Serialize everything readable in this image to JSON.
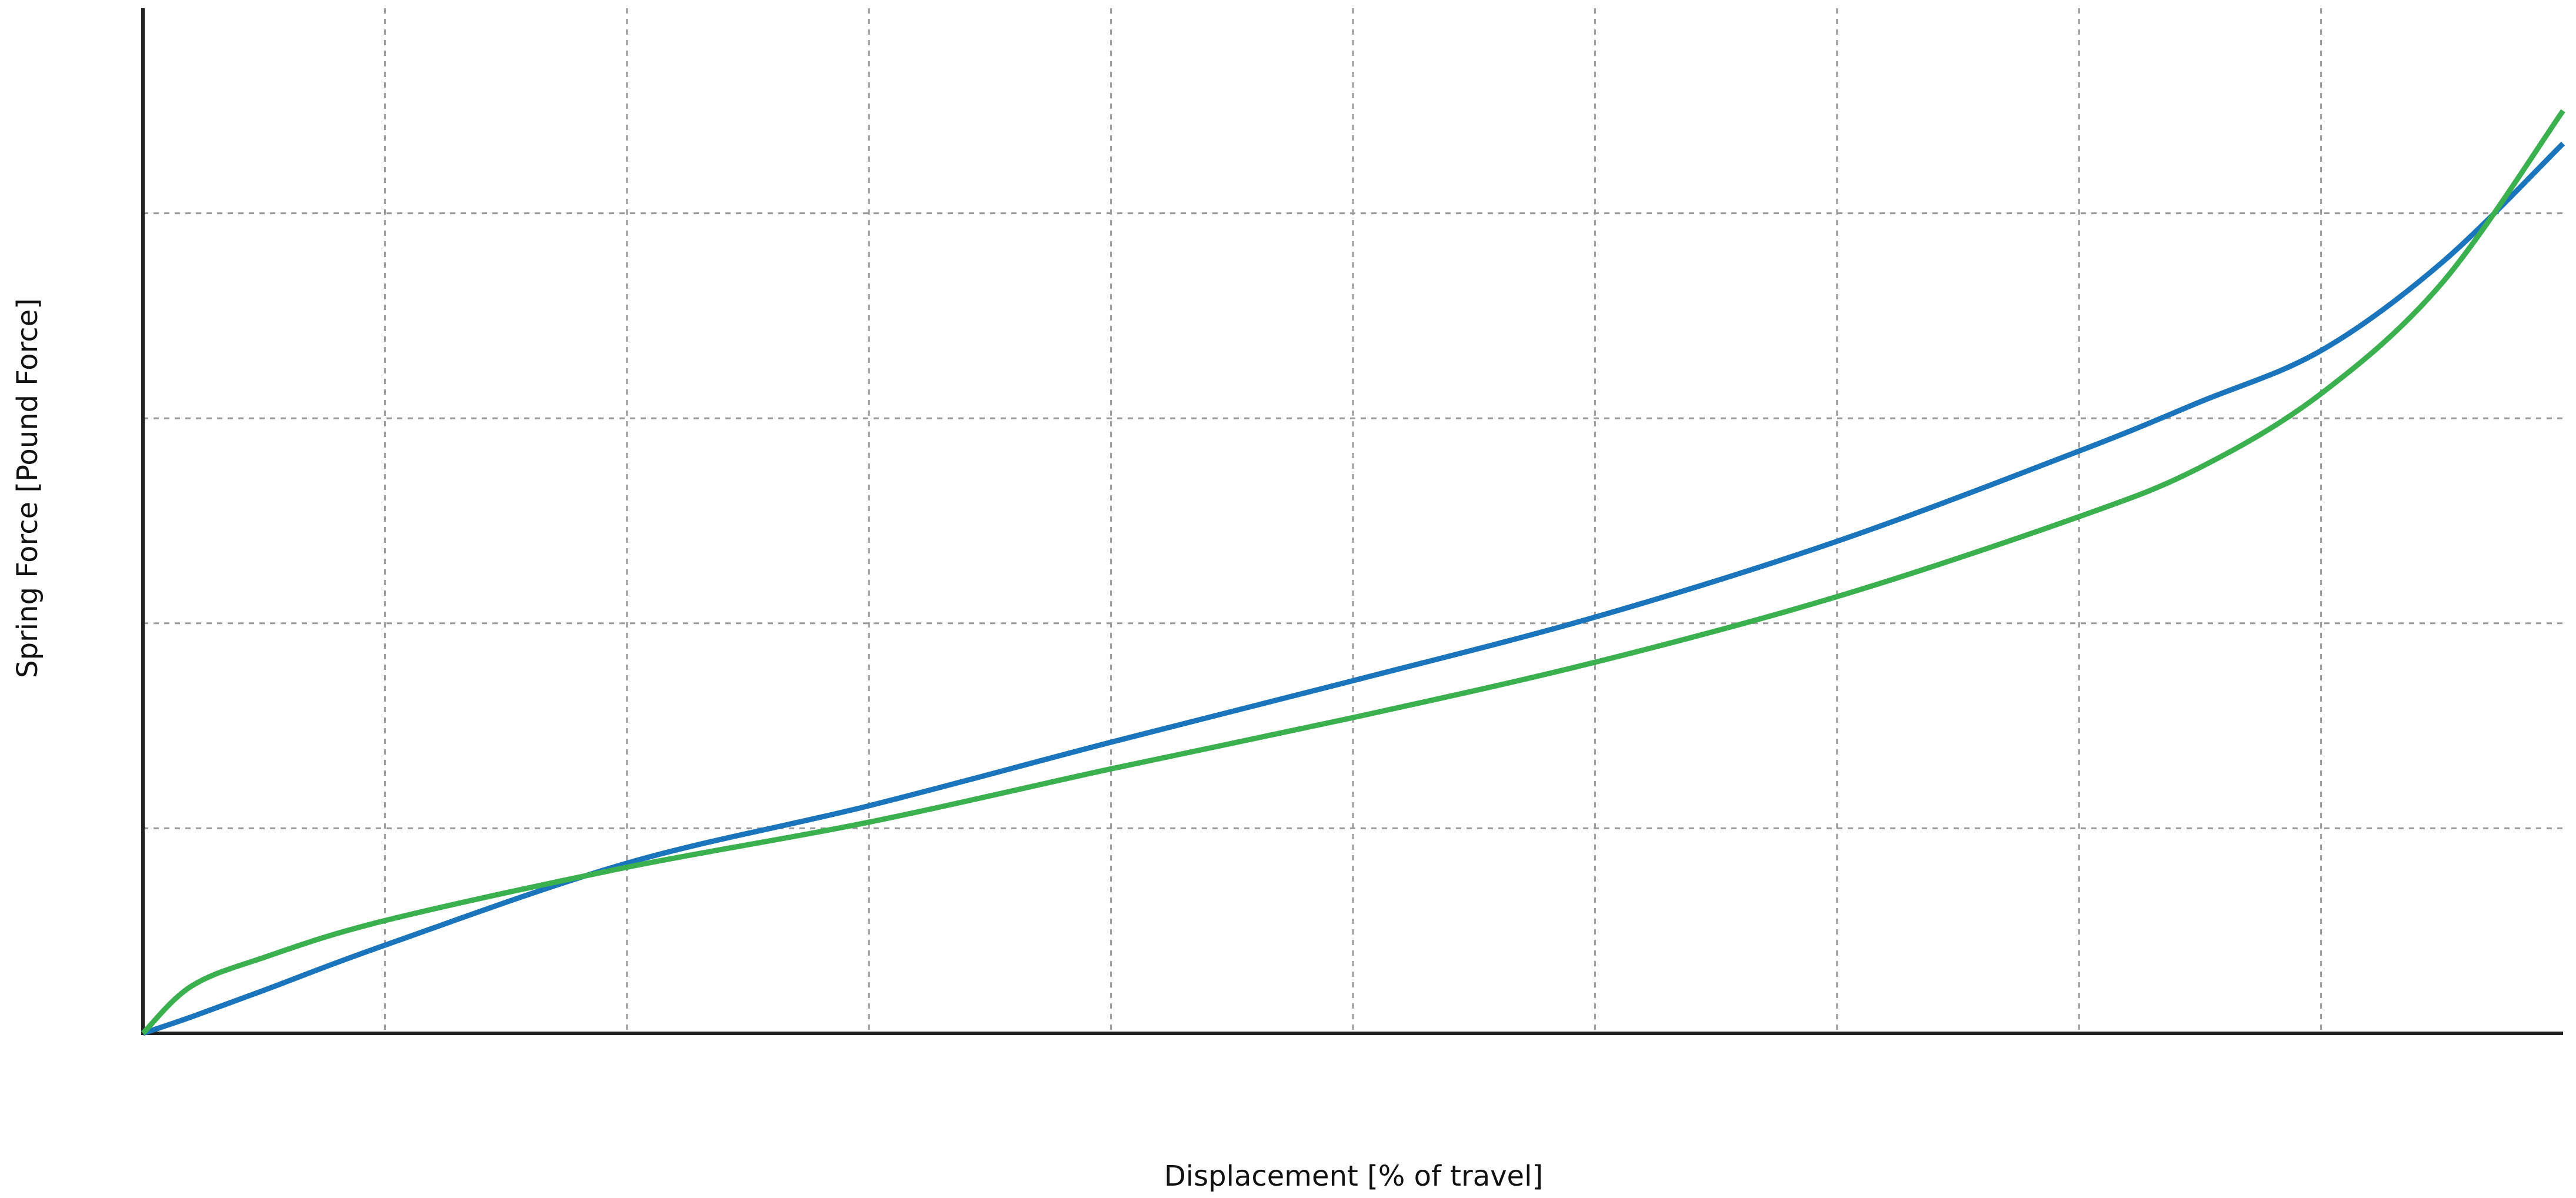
{
  "chart_data": {
    "type": "line",
    "x_label": "Displacement [% of travel]",
    "y_label": "Spring Force [Pound Force]",
    "x": [
      0,
      2,
      5,
      10,
      20,
      30,
      40,
      50,
      60,
      70,
      80,
      85,
      90,
      95,
      100
    ],
    "series": [
      {
        "color": "#1b75bc",
        "values": [
          0,
          0.08,
          0.21,
          0.43,
          0.83,
          1.11,
          1.42,
          1.72,
          2.03,
          2.4,
          2.84,
          3.08,
          3.33,
          3.76,
          4.34
        ]
      },
      {
        "color": "#3bb04f",
        "values": [
          0,
          0.23,
          0.37,
          0.55,
          0.81,
          1.03,
          1.29,
          1.54,
          1.81,
          2.13,
          2.52,
          2.76,
          3.12,
          3.66,
          4.5
        ]
      }
    ],
    "xlim": [
      0,
      100
    ],
    "ylim": [
      0,
      5
    ],
    "xticks": [
      10,
      20,
      30,
      40,
      50,
      60,
      70,
      80,
      90
    ],
    "yticks": [
      1,
      2,
      3,
      4
    ],
    "grid": true,
    "tick_labels": false
  }
}
